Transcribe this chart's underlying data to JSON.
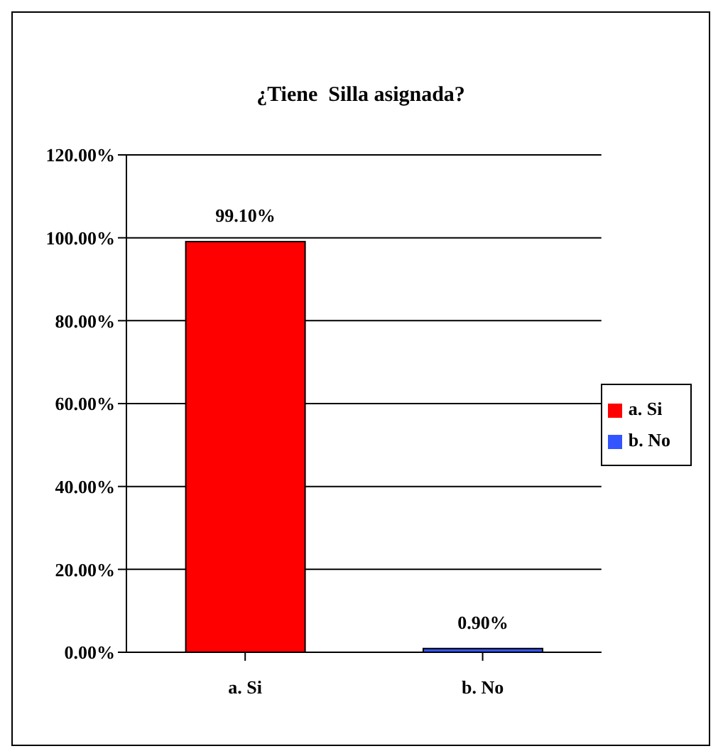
{
  "chart_data": {
    "type": "bar",
    "title": "¿Tiene  Silla asignada?",
    "categories": [
      "a. Si",
      "b. No"
    ],
    "series": [
      {
        "name": "a. Si",
        "color": "#ff0000",
        "values": [
          99.1,
          null
        ],
        "value_labels": [
          "99.10%",
          null
        ]
      },
      {
        "name": "b. No",
        "color": "#3355ff",
        "values": [
          null,
          0.9
        ],
        "value_labels": [
          null,
          "0.90%"
        ]
      }
    ],
    "stacked": true,
    "ylim": [
      0,
      120
    ],
    "yticks": [
      {
        "value": 0,
        "label": "0.00%"
      },
      {
        "value": 20,
        "label": "20.00%"
      },
      {
        "value": 40,
        "label": "40.00%"
      },
      {
        "value": 60,
        "label": "60.00%"
      },
      {
        "value": 80,
        "label": "80.00%"
      },
      {
        "value": 100,
        "label": "100.00%"
      },
      {
        "value": 120,
        "label": "120.00%"
      }
    ],
    "grid": "y",
    "legend": "right"
  }
}
